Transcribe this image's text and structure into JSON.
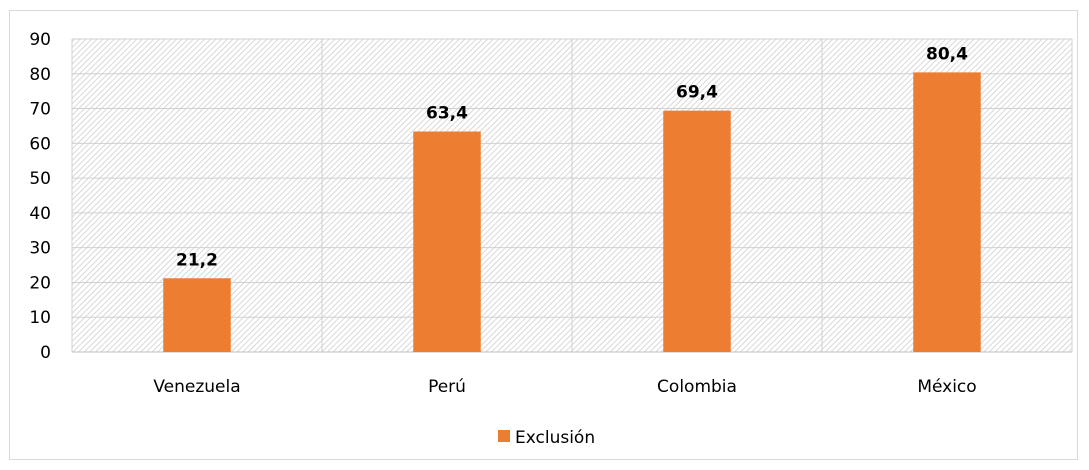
{
  "chart_data": {
    "type": "bar",
    "categories": [
      "Venezuela",
      "Perú",
      "Colombia",
      "México"
    ],
    "series": [
      {
        "name": "Exclusión",
        "values": [
          21.2,
          63.4,
          69.4,
          80.4
        ],
        "labels": [
          "21,2",
          "63,4",
          "69,4",
          "80,4"
        ],
        "color": "#ed7d31"
      }
    ],
    "title": "",
    "xlabel": "",
    "ylabel": "",
    "ylim": [
      0,
      90
    ],
    "yticks": [
      0,
      10,
      20,
      30,
      40,
      50,
      60,
      70,
      80,
      90
    ],
    "grid": true,
    "plot_background": "hatched light gray",
    "legend": "bottom"
  }
}
